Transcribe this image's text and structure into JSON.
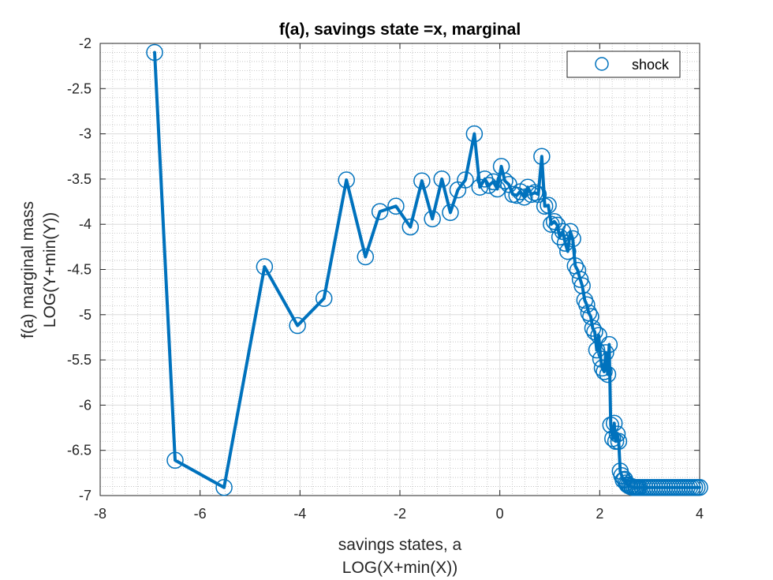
{
  "chart_data": {
    "type": "line",
    "title": "f(a), savings state =x, marginal",
    "xlabel": [
      "savings states, a",
      "LOG(X+min(X))"
    ],
    "ylabel": [
      "f(a) marginal mass",
      "LOG(Y+min(Y))"
    ],
    "xlim": [
      -8,
      4
    ],
    "ylim": [
      -7,
      -2
    ],
    "xticks": [
      -8,
      -6,
      -4,
      -2,
      0,
      2,
      4
    ],
    "yticks": [
      -7,
      -6.5,
      -6,
      -5.5,
      -5,
      -4.5,
      -4,
      -3.5,
      -3,
      -2.5,
      -2
    ],
    "xtick_labels": [
      "-8",
      "-6",
      "-4",
      "-2",
      "0",
      "2",
      "4"
    ],
    "ytick_labels": [
      "-7",
      "-6.5",
      "-6",
      "-5.5",
      "-5",
      "-4.5",
      "-4",
      "-3.5",
      "-3",
      "-2.5",
      "-2"
    ],
    "grid": true,
    "minor_grid": true,
    "legend_position": "top-right",
    "series": [
      {
        "name": "shock",
        "color": "#0072BD",
        "marker": "circle",
        "x": [
          -6.91,
          -6.5,
          -5.52,
          -4.71,
          -4.05,
          -3.52,
          -3.07,
          -2.69,
          -2.4,
          -2.08,
          -1.79,
          -1.56,
          -1.35,
          -1.16,
          -0.99,
          -0.84,
          -0.69,
          -0.51,
          -0.4,
          -0.3,
          -0.22,
          -0.13,
          -0.05,
          0.03,
          0.1,
          0.18,
          0.26,
          0.34,
          0.41,
          0.49,
          0.56,
          0.63,
          0.7,
          0.77,
          0.84,
          0.9,
          0.97,
          1.03,
          1.09,
          1.15,
          1.2,
          1.26,
          1.31,
          1.36,
          1.41,
          1.46,
          1.51,
          1.56,
          1.61,
          1.65,
          1.7,
          1.74,
          1.78,
          1.82,
          1.86,
          1.9,
          1.94,
          1.98,
          2.02,
          2.05,
          2.09,
          2.12,
          2.16,
          2.19,
          2.22,
          2.26,
          2.29,
          2.32,
          2.35,
          2.38,
          2.41,
          2.44,
          2.47,
          2.5,
          2.53,
          2.55,
          2.58,
          2.61,
          2.64,
          2.66,
          2.69,
          2.72,
          2.74,
          2.77,
          2.8,
          2.85,
          2.9,
          2.95,
          3.0,
          3.05,
          3.1,
          3.15,
          3.2,
          3.25,
          3.3,
          3.35,
          3.4,
          3.45,
          3.5,
          3.55,
          3.6,
          3.65,
          3.7,
          3.75,
          3.8,
          3.85,
          3.9,
          3.95,
          4.0
        ],
        "y": [
          -2.1,
          -6.61,
          -6.91,
          -4.47,
          -5.12,
          -4.82,
          -3.51,
          -4.36,
          -3.86,
          -3.8,
          -4.03,
          -3.52,
          -3.94,
          -3.5,
          -3.87,
          -3.62,
          -3.51,
          -3.0,
          -3.59,
          -3.5,
          -3.57,
          -3.53,
          -3.61,
          -3.36,
          -3.52,
          -3.56,
          -3.67,
          -3.68,
          -3.64,
          -3.7,
          -3.59,
          -3.67,
          -3.65,
          -3.67,
          -3.25,
          -3.8,
          -3.79,
          -4.0,
          -3.97,
          -4.01,
          -4.14,
          -4.08,
          -4.21,
          -4.3,
          -4.08,
          -4.16,
          -4.46,
          -4.51,
          -4.61,
          -4.68,
          -4.84,
          -4.89,
          -4.98,
          -5.02,
          -5.15,
          -5.19,
          -5.39,
          -5.23,
          -5.49,
          -5.59,
          -5.63,
          -5.42,
          -5.66,
          -5.33,
          -6.22,
          -6.37,
          -6.2,
          -6.4,
          -6.32,
          -6.4,
          -6.73,
          -6.78,
          -6.83,
          -6.82,
          -6.86,
          -6.88,
          -6.89,
          -6.9,
          -6.9,
          -6.91,
          -6.91,
          -6.91,
          -6.91,
          -6.91,
          -6.91,
          -6.91,
          -6.91,
          -6.91,
          -6.91,
          -6.91,
          -6.91,
          -6.91,
          -6.91,
          -6.91,
          -6.91,
          -6.91,
          -6.91,
          -6.91,
          -6.91,
          -6.91,
          -6.91,
          -6.91,
          -6.91,
          -6.91,
          -6.91,
          -6.91,
          -6.91,
          -6.91,
          -6.91
        ]
      }
    ]
  }
}
